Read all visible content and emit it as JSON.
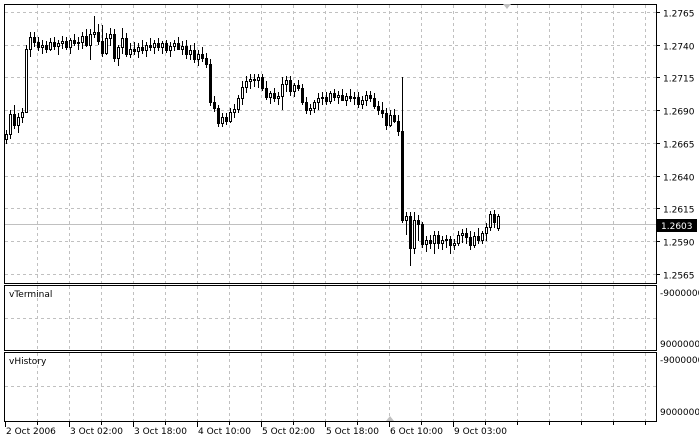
{
  "chart_data": {
    "type": "candlestick",
    "title": "",
    "price_axis": {
      "ticks": [
        "1.2765",
        "1.2740",
        "1.2715",
        "1.2690",
        "1.2665",
        "1.2640",
        "1.2615",
        "1.2590",
        "1.2565"
      ],
      "ylim": [
        1.2553,
        1.2776
      ],
      "current_price": "1.2603"
    },
    "time_axis": {
      "ticks": [
        "2 Oct 2006",
        "3 Oct 02:00",
        "3 Oct 18:00",
        "4 Oct 10:00",
        "5 Oct 02:00",
        "5 Oct 18:00",
        "6 Oct 10:00",
        "9 Oct 03:00"
      ]
    },
    "grid": true,
    "colors": {
      "bull_body": "#ffffff",
      "bear_body": "#000000",
      "wick": "#000000",
      "grid": "#c0c0c0",
      "bid_line": "#c0c0c0"
    },
    "candles_ohlc": [
      [
        1.2668,
        1.2675,
        1.2664,
        1.2672
      ],
      [
        1.2672,
        1.269,
        1.2668,
        1.2687
      ],
      [
        1.2687,
        1.2694,
        1.2676,
        1.2679
      ],
      [
        1.2679,
        1.2688,
        1.2673,
        1.2685
      ],
      [
        1.2685,
        1.2692,
        1.268,
        1.2689
      ],
      [
        1.2689,
        1.274,
        1.2688,
        1.2737
      ],
      [
        1.2737,
        1.275,
        1.2731,
        1.2746
      ],
      [
        1.2746,
        1.275,
        1.2738,
        1.2742
      ],
      [
        1.2742,
        1.2746,
        1.2735,
        1.2738
      ],
      [
        1.2738,
        1.2744,
        1.2733,
        1.274
      ],
      [
        1.274,
        1.2743,
        1.2734,
        1.2737
      ],
      [
        1.2737,
        1.2745,
        1.2735,
        1.2742
      ],
      [
        1.2742,
        1.2746,
        1.2736,
        1.2739
      ],
      [
        1.2739,
        1.2744,
        1.2732,
        1.2741
      ],
      [
        1.2741,
        1.2747,
        1.2737,
        1.2743
      ],
      [
        1.2743,
        1.2746,
        1.2736,
        1.2738
      ],
      [
        1.2738,
        1.2745,
        1.2733,
        1.2744
      ],
      [
        1.2744,
        1.2748,
        1.2739,
        1.2741
      ],
      [
        1.2741,
        1.2746,
        1.2736,
        1.2742
      ],
      [
        1.2742,
        1.275,
        1.2737,
        1.2747
      ],
      [
        1.2747,
        1.2752,
        1.2738,
        1.274
      ],
      [
        1.274,
        1.2752,
        1.2728,
        1.2748
      ],
      [
        1.2748,
        1.2762,
        1.2745,
        1.275
      ],
      [
        1.275,
        1.2756,
        1.274,
        1.2743
      ],
      [
        1.2743,
        1.2755,
        1.2731,
        1.2734
      ],
      [
        1.2734,
        1.2749,
        1.2732,
        1.2745
      ],
      [
        1.2745,
        1.2753,
        1.2739,
        1.2748
      ],
      [
        1.2748,
        1.2752,
        1.2727,
        1.273
      ],
      [
        1.273,
        1.274,
        1.2724,
        1.2738
      ],
      [
        1.2738,
        1.2753,
        1.2733,
        1.2745
      ],
      [
        1.2745,
        1.2749,
        1.2731,
        1.2733
      ],
      [
        1.2733,
        1.2741,
        1.273,
        1.2737
      ],
      [
        1.2737,
        1.2742,
        1.2732,
        1.2735
      ],
      [
        1.2735,
        1.2741,
        1.273,
        1.2738
      ],
      [
        1.2738,
        1.2744,
        1.2733,
        1.2736
      ],
      [
        1.2736,
        1.2742,
        1.2731,
        1.274
      ],
      [
        1.274,
        1.2745,
        1.2735,
        1.2738
      ],
      [
        1.2738,
        1.2744,
        1.2733,
        1.2741
      ],
      [
        1.2741,
        1.2745,
        1.2735,
        1.2738
      ],
      [
        1.2738,
        1.2743,
        1.2733,
        1.2741
      ],
      [
        1.2741,
        1.2744,
        1.2734,
        1.2736
      ],
      [
        1.2736,
        1.2742,
        1.2731,
        1.2739
      ],
      [
        1.2739,
        1.2744,
        1.2735,
        1.2741
      ],
      [
        1.2741,
        1.2746,
        1.2736,
        1.2737
      ],
      [
        1.2737,
        1.2743,
        1.2732,
        1.2739
      ],
      [
        1.2739,
        1.2744,
        1.2729,
        1.2733
      ],
      [
        1.2733,
        1.274,
        1.2728,
        1.2736
      ],
      [
        1.2736,
        1.2741,
        1.2726,
        1.2729
      ],
      [
        1.2729,
        1.2736,
        1.2724,
        1.2733
      ],
      [
        1.2733,
        1.2738,
        1.2727,
        1.273
      ],
      [
        1.273,
        1.2734,
        1.2722,
        1.2725
      ],
      [
        1.2725,
        1.2729,
        1.2693,
        1.2696
      ],
      [
        1.2696,
        1.2701,
        1.2689,
        1.2692
      ],
      [
        1.2692,
        1.2694,
        1.2677,
        1.268
      ],
      [
        1.268,
        1.2688,
        1.2677,
        1.2685
      ],
      [
        1.2685,
        1.2688,
        1.2679,
        1.2682
      ],
      [
        1.2682,
        1.2692,
        1.268,
        1.2689
      ],
      [
        1.2689,
        1.2695,
        1.2684,
        1.2691
      ],
      [
        1.2691,
        1.2702,
        1.2688,
        1.2699
      ],
      [
        1.2699,
        1.2712,
        1.2694,
        1.2708
      ],
      [
        1.2708,
        1.2716,
        1.2703,
        1.2712
      ],
      [
        1.2712,
        1.2718,
        1.2706,
        1.2714
      ],
      [
        1.2714,
        1.2718,
        1.2708,
        1.2713
      ],
      [
        1.2713,
        1.2718,
        1.2707,
        1.2715
      ],
      [
        1.2715,
        1.2718,
        1.2705,
        1.2707
      ],
      [
        1.2707,
        1.2712,
        1.2698,
        1.27
      ],
      [
        1.27,
        1.2705,
        1.2695,
        1.2703
      ],
      [
        1.2703,
        1.2707,
        1.2696,
        1.2699
      ],
      [
        1.2699,
        1.2704,
        1.2694,
        1.2701
      ],
      [
        1.2701,
        1.2715,
        1.269,
        1.271
      ],
      [
        1.271,
        1.2716,
        1.2704,
        1.2713
      ],
      [
        1.2713,
        1.2716,
        1.2701,
        1.2705
      ],
      [
        1.2705,
        1.2711,
        1.27,
        1.2709
      ],
      [
        1.2709,
        1.2713,
        1.2705,
        1.2707
      ],
      [
        1.2707,
        1.271,
        1.2694,
        1.2696
      ],
      [
        1.2696,
        1.27,
        1.2687,
        1.269
      ],
      [
        1.269,
        1.2695,
        1.2686,
        1.2692
      ],
      [
        1.2692,
        1.2698,
        1.2688,
        1.2696
      ],
      [
        1.2696,
        1.2703,
        1.269,
        1.2699
      ],
      [
        1.2699,
        1.2704,
        1.2694,
        1.27
      ],
      [
        1.27,
        1.2704,
        1.2694,
        1.2697
      ],
      [
        1.2697,
        1.2705,
        1.2695,
        1.2703
      ],
      [
        1.2703,
        1.2706,
        1.2697,
        1.27
      ],
      [
        1.27,
        1.2705,
        1.2695,
        1.2702
      ],
      [
        1.2702,
        1.2706,
        1.2697,
        1.2698
      ],
      [
        1.2698,
        1.2703,
        1.2693,
        1.2701
      ],
      [
        1.2701,
        1.2706,
        1.2696,
        1.2699
      ],
      [
        1.2699,
        1.2704,
        1.2694,
        1.27
      ],
      [
        1.27,
        1.2704,
        1.2692,
        1.2695
      ],
      [
        1.2695,
        1.2701,
        1.2691,
        1.2698
      ],
      [
        1.2698,
        1.2705,
        1.2693,
        1.2702
      ],
      [
        1.2702,
        1.2705,
        1.2696,
        1.2699
      ],
      [
        1.2699,
        1.2703,
        1.2691,
        1.2693
      ],
      [
        1.2693,
        1.2697,
        1.2686,
        1.269
      ],
      [
        1.269,
        1.2696,
        1.2684,
        1.2688
      ],
      [
        1.2688,
        1.2692,
        1.2675,
        1.2679
      ],
      [
        1.2679,
        1.269,
        1.2677,
        1.2686
      ],
      [
        1.2686,
        1.2691,
        1.268,
        1.2682
      ],
      [
        1.2682,
        1.2686,
        1.267,
        1.2674
      ],
      [
        1.2674,
        1.2715,
        1.2604,
        1.2606
      ],
      [
        1.2606,
        1.2612,
        1.2595,
        1.2609
      ],
      [
        1.2609,
        1.2612,
        1.2571,
        1.2585
      ],
      [
        1.2585,
        1.2612,
        1.258,
        1.2606
      ],
      [
        1.2606,
        1.261,
        1.259,
        1.2603
      ],
      [
        1.2603,
        1.2605,
        1.2585,
        1.2588
      ],
      [
        1.2588,
        1.2594,
        1.2582,
        1.2591
      ],
      [
        1.2591,
        1.2595,
        1.2584,
        1.2589
      ],
      [
        1.2589,
        1.2598,
        1.258,
        1.2595
      ],
      [
        1.2595,
        1.2598,
        1.2584,
        1.2589
      ],
      [
        1.2589,
        1.2594,
        1.2583,
        1.2591
      ],
      [
        1.2591,
        1.2595,
        1.2585,
        1.2592
      ],
      [
        1.2592,
        1.2594,
        1.258,
        1.2587
      ],
      [
        1.2587,
        1.2592,
        1.2583,
        1.2589
      ],
      [
        1.2589,
        1.2598,
        1.2586,
        1.2595
      ],
      [
        1.2595,
        1.2599,
        1.2589,
        1.2596
      ],
      [
        1.2596,
        1.26,
        1.2588,
        1.2593
      ],
      [
        1.2593,
        1.2598,
        1.2583,
        1.2587
      ],
      [
        1.2587,
        1.2597,
        1.2585,
        1.2594
      ],
      [
        1.2594,
        1.26,
        1.2588,
        1.2591
      ],
      [
        1.2591,
        1.2598,
        1.2588,
        1.2596
      ],
      [
        1.2596,
        1.2604,
        1.259,
        1.2601
      ],
      [
        1.2601,
        1.2613,
        1.2598,
        1.2611
      ],
      [
        1.2611,
        1.2614,
        1.26,
        1.2605
      ],
      [
        1.26,
        1.2611,
        1.2598,
        1.2609
      ]
    ]
  },
  "indicators": [
    {
      "name": "vTerminal",
      "axis_top": "-9000000",
      "axis_bottom": "9000000"
    },
    {
      "name": "vHistory",
      "axis_top": "-9000000",
      "axis_bottom": "9000000"
    }
  ]
}
